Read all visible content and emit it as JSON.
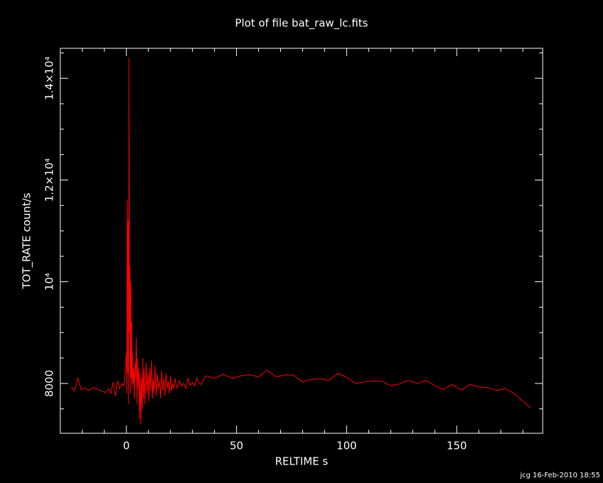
{
  "chart_data": {
    "type": "line",
    "title": "Plot of file bat_raw_lc.fits",
    "x_label": "RELTIME  s",
    "y_label": "TOT_RATE  count/s",
    "footer": "jcg 16-Feb-2010 18:55",
    "xlim": [
      -30,
      189
    ],
    "ylim": [
      7020,
      14590
    ],
    "xticks": [
      0,
      50,
      100,
      150
    ],
    "yticks": [
      8000,
      {
        "value": 10000,
        "label": "10⁴"
      },
      {
        "value": 12000,
        "label": "1.2×10⁴"
      },
      {
        "value": 14000,
        "label": "1.4×10⁴"
      }
    ],
    "xticks_minor": [
      -20,
      -10,
      10,
      20,
      30,
      40,
      60,
      70,
      80,
      90,
      110,
      120,
      130,
      140,
      160,
      170,
      180
    ],
    "yticks_minor": [
      7500,
      8500,
      9000,
      9500,
      10500,
      11000,
      11500,
      12500,
      13000,
      13500,
      14500
    ],
    "series": [
      {
        "color": "#ff0000",
        "x": [
          -25,
          -23.5,
          -22,
          -20.5,
          -19,
          -17,
          -15,
          -13,
          -11,
          -9.5,
          -8,
          -7,
          -6,
          -5,
          -4,
          -3,
          -2,
          -1.2,
          -0.6,
          0,
          0.2,
          0.4,
          0.6,
          0.8,
          1.0,
          1.2,
          1.4,
          1.6,
          1.8,
          2.0,
          2.2,
          2.4,
          2.6,
          2.8,
          3.0,
          3.3,
          3.6,
          3.9,
          4.2,
          4.5,
          4.8,
          5.1,
          5.4,
          5.7,
          6.0,
          6.3,
          6.6,
          6.9,
          7.2,
          7.5,
          7.8,
          8.1,
          8.4,
          8.7,
          9.0,
          9.4,
          9.8,
          10.2,
          10.6,
          11.0,
          11.4,
          11.8,
          12.2,
          12.6,
          13.0,
          13.5,
          14.0,
          14.5,
          15.0,
          15.5,
          16.0,
          16.5,
          17.0,
          17.5,
          18.0,
          18.5,
          19.0,
          19.5,
          20.0,
          20.5,
          21.0,
          21.5,
          22,
          23,
          24,
          25,
          26,
          27,
          28,
          29,
          30,
          31,
          32,
          33,
          34,
          36,
          40,
          44,
          48,
          52,
          56,
          60,
          64,
          68,
          72,
          76,
          80,
          84,
          88,
          92,
          96,
          100,
          104,
          108,
          112,
          116,
          120,
          124,
          128,
          132,
          136,
          140,
          144,
          148,
          152,
          156,
          160,
          164,
          168,
          172,
          176,
          180,
          183.5
        ],
        "values": [
          7930,
          7850,
          8100,
          7880,
          7910,
          7860,
          7920,
          7880,
          7850,
          7820,
          7900,
          7800,
          8030,
          7750,
          8050,
          7900,
          8000,
          7950,
          8200,
          8600,
          7800,
          11600,
          8200,
          11200,
          7600,
          14400,
          9000,
          10300,
          7800,
          10000,
          8100,
          9200,
          7900,
          8600,
          8000,
          8300,
          7700,
          8400,
          8100,
          8900,
          7600,
          8500,
          7900,
          8300,
          7300,
          8200,
          7200,
          8100,
          7500,
          8500,
          7700,
          8300,
          7600,
          8000,
          8400,
          7800,
          8200,
          7650,
          8300,
          7850,
          8450,
          7700,
          8100,
          7800,
          8350,
          7750,
          8200,
          7900,
          8050,
          7700,
          8250,
          7850,
          8100,
          7750,
          8200,
          7900,
          8050,
          7800,
          8150,
          7850,
          8000,
          7900,
          8100,
          7900,
          8050,
          7950,
          8000,
          7900,
          8100,
          7960,
          8020,
          7950,
          8100,
          8000,
          7980,
          8150,
          8100,
          8180,
          8100,
          8150,
          8170,
          8130,
          8260,
          8130,
          8170,
          8160,
          8030,
          8080,
          8090,
          8060,
          8200,
          8120,
          8000,
          8030,
          8050,
          8040,
          7960,
          7990,
          8060,
          8000,
          8060,
          7960,
          7880,
          7980,
          7870,
          7980,
          7930,
          7920,
          7860,
          7900,
          7800,
          7650,
          7520
        ]
      }
    ]
  }
}
